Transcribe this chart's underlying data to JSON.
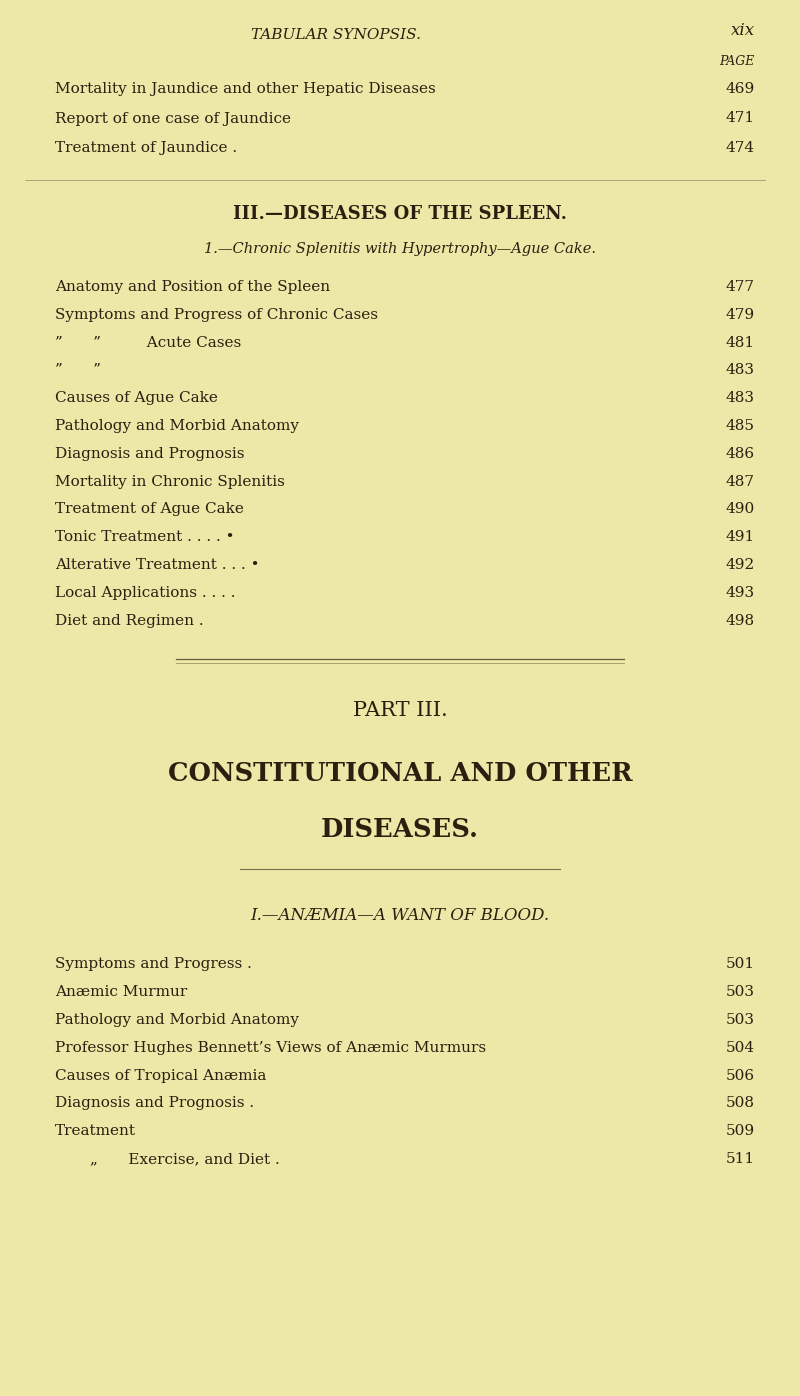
{
  "bg_color": "#EDE8A8",
  "text_color": "#2a2010",
  "page_width": 8.0,
  "page_height": 13.96,
  "dpi": 100,
  "header_left": "TABULAR SYNOPSIS.",
  "header_right": "xix",
  "page_label": "PAGE",
  "top_entries": [
    {
      "text": "Mortality in Jaundice and other Hepatic Diseases",
      "page": "469"
    },
    {
      "text": "Report of one case of Jaundice",
      "page": "471"
    },
    {
      "text": "Treatment of Jaundice .",
      "page": "474"
    }
  ],
  "section_title": "III.—DISEASES OF THE SPLEEN.",
  "subsection_title": "1.—Chronic Splenitis with Hypertrophy—Ague Cake.",
  "spleen_entries": [
    {
      "text": "Anatomy and Position of the Spleen",
      "page": "477"
    },
    {
      "text": "Symptoms and Progress of Chronic Cases",
      "page": "479"
    },
    {
      "text": "”  ”   Acute Cases",
      "page": "481"
    },
    {
      "text": "”  ”",
      "page": "483"
    },
    {
      "text": "Causes of Ague Cake",
      "page": "483"
    },
    {
      "text": "Pathology and Morbid Anatomy",
      "page": "485"
    },
    {
      "text": "Diagnosis and Prognosis",
      "page": "486"
    },
    {
      "text": "Mortality in Chronic Splenitis",
      "page": "487"
    },
    {
      "text": "Treatment of Ague Cake",
      "page": "490"
    },
    {
      "text": "Tonic Treatment . . . . •",
      "page": "491"
    },
    {
      "text": "Alterative Treatment . . . •",
      "page": "492"
    },
    {
      "text": "Local Applications . . . .",
      "page": "493"
    },
    {
      "text": "Diet and Regimen .",
      "page": "498"
    }
  ],
  "part_title": "PART III.",
  "part_subtitle1": "CONSTITUTIONAL AND OTHER",
  "part_subtitle2": "DISEASES.",
  "anemia_section": "I.—ANÆMIA—A WANT OF BLOOD.",
  "anemia_entries": [
    {
      "text": "Symptoms and Progress .",
      "page": "501"
    },
    {
      "text": "Anæmic Murmur",
      "page": "503"
    },
    {
      "text": "Pathology and Morbid Anatomy",
      "page": "503"
    },
    {
      "text": "Professor Hughes Bennett’s Views of Anæmic Murmurs",
      "page": "504"
    },
    {
      "text": "Causes of Tropical Anæmia",
      "page": "506"
    },
    {
      "text": "Diagnosis and Prognosis .",
      "page": "508"
    },
    {
      "text": "Treatment",
      "page": "509"
    },
    {
      "text": "„  Exercise, and Diet .",
      "page": "511"
    }
  ]
}
